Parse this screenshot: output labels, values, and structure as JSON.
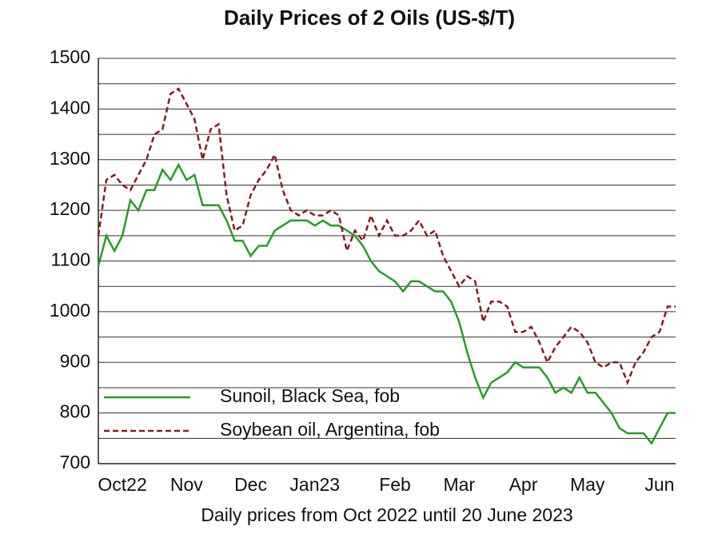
{
  "chart_data": {
    "type": "line",
    "title": "Daily Prices of 2 Oils (US-$/T)",
    "x_label": "Daily prices from Oct 2022 until 20 June 2023",
    "categories": [
      null,
      null,
      null,
      "Oct22",
      null,
      null,
      null,
      null,
      null,
      null,
      null,
      "Nov",
      null,
      null,
      null,
      null,
      null,
      null,
      null,
      "Dec",
      null,
      null,
      null,
      null,
      null,
      null,
      null,
      "Jan23",
      null,
      null,
      null,
      null,
      null,
      null,
      null,
      null,
      null,
      "Feb",
      null,
      null,
      null,
      null,
      null,
      null,
      null,
      "Mar",
      null,
      null,
      null,
      null,
      null,
      null,
      null,
      "Apr",
      null,
      null,
      null,
      null,
      null,
      null,
      null,
      "May",
      null,
      null,
      null,
      null,
      null,
      null,
      null,
      null,
      "Jun",
      null,
      null
    ],
    "series": [
      {
        "name": "Sunoil, Black Sea, fob",
        "color": "#22a022",
        "dash": false,
        "values": [
          1090,
          1150,
          1120,
          1150,
          1220,
          1200,
          1240,
          1240,
          1280,
          1260,
          1290,
          1260,
          1270,
          1210,
          1210,
          1210,
          1180,
          1140,
          1140,
          1110,
          1130,
          1130,
          1160,
          1170,
          1180,
          1180,
          1180,
          1170,
          1180,
          1170,
          1170,
          1160,
          1150,
          1130,
          1100,
          1080,
          1070,
          1060,
          1040,
          1060,
          1060,
          1050,
          1040,
          1040,
          1020,
          980,
          920,
          870,
          830,
          860,
          870,
          880,
          900,
          890,
          890,
          890,
          870,
          840,
          850,
          840,
          870,
          840,
          840,
          820,
          800,
          770,
          760,
          760,
          760,
          740,
          770,
          800,
          800
        ]
      },
      {
        "name": "Soybean oil, Argentina, fob",
        "color": "#8b1a1a",
        "dash": true,
        "values": [
          1150,
          1260,
          1270,
          1250,
          1240,
          1270,
          1300,
          1350,
          1360,
          1430,
          1440,
          1410,
          1380,
          1300,
          1360,
          1370,
          1230,
          1160,
          1170,
          1230,
          1260,
          1280,
          1310,
          1240,
          1200,
          1190,
          1200,
          1190,
          1190,
          1200,
          1190,
          1120,
          1160,
          1140,
          1190,
          1150,
          1180,
          1150,
          1150,
          1160,
          1180,
          1150,
          1160,
          1110,
          1080,
          1050,
          1070,
          1060,
          980,
          1020,
          1020,
          1010,
          960,
          960,
          970,
          940,
          900,
          930,
          950,
          970,
          960,
          940,
          900,
          890,
          900,
          900,
          860,
          900,
          920,
          950,
          960,
          1010,
          1010
        ]
      }
    ],
    "ylim": [
      700,
      1500
    ],
    "yticks": [
      700,
      800,
      900,
      1000,
      1100,
      1200,
      1300,
      1400,
      1500
    ],
    "minor_grid": [
      750,
      850,
      950,
      1050,
      1150,
      1250,
      1350,
      1450
    ],
    "grid": true,
    "legend": "lower left"
  }
}
